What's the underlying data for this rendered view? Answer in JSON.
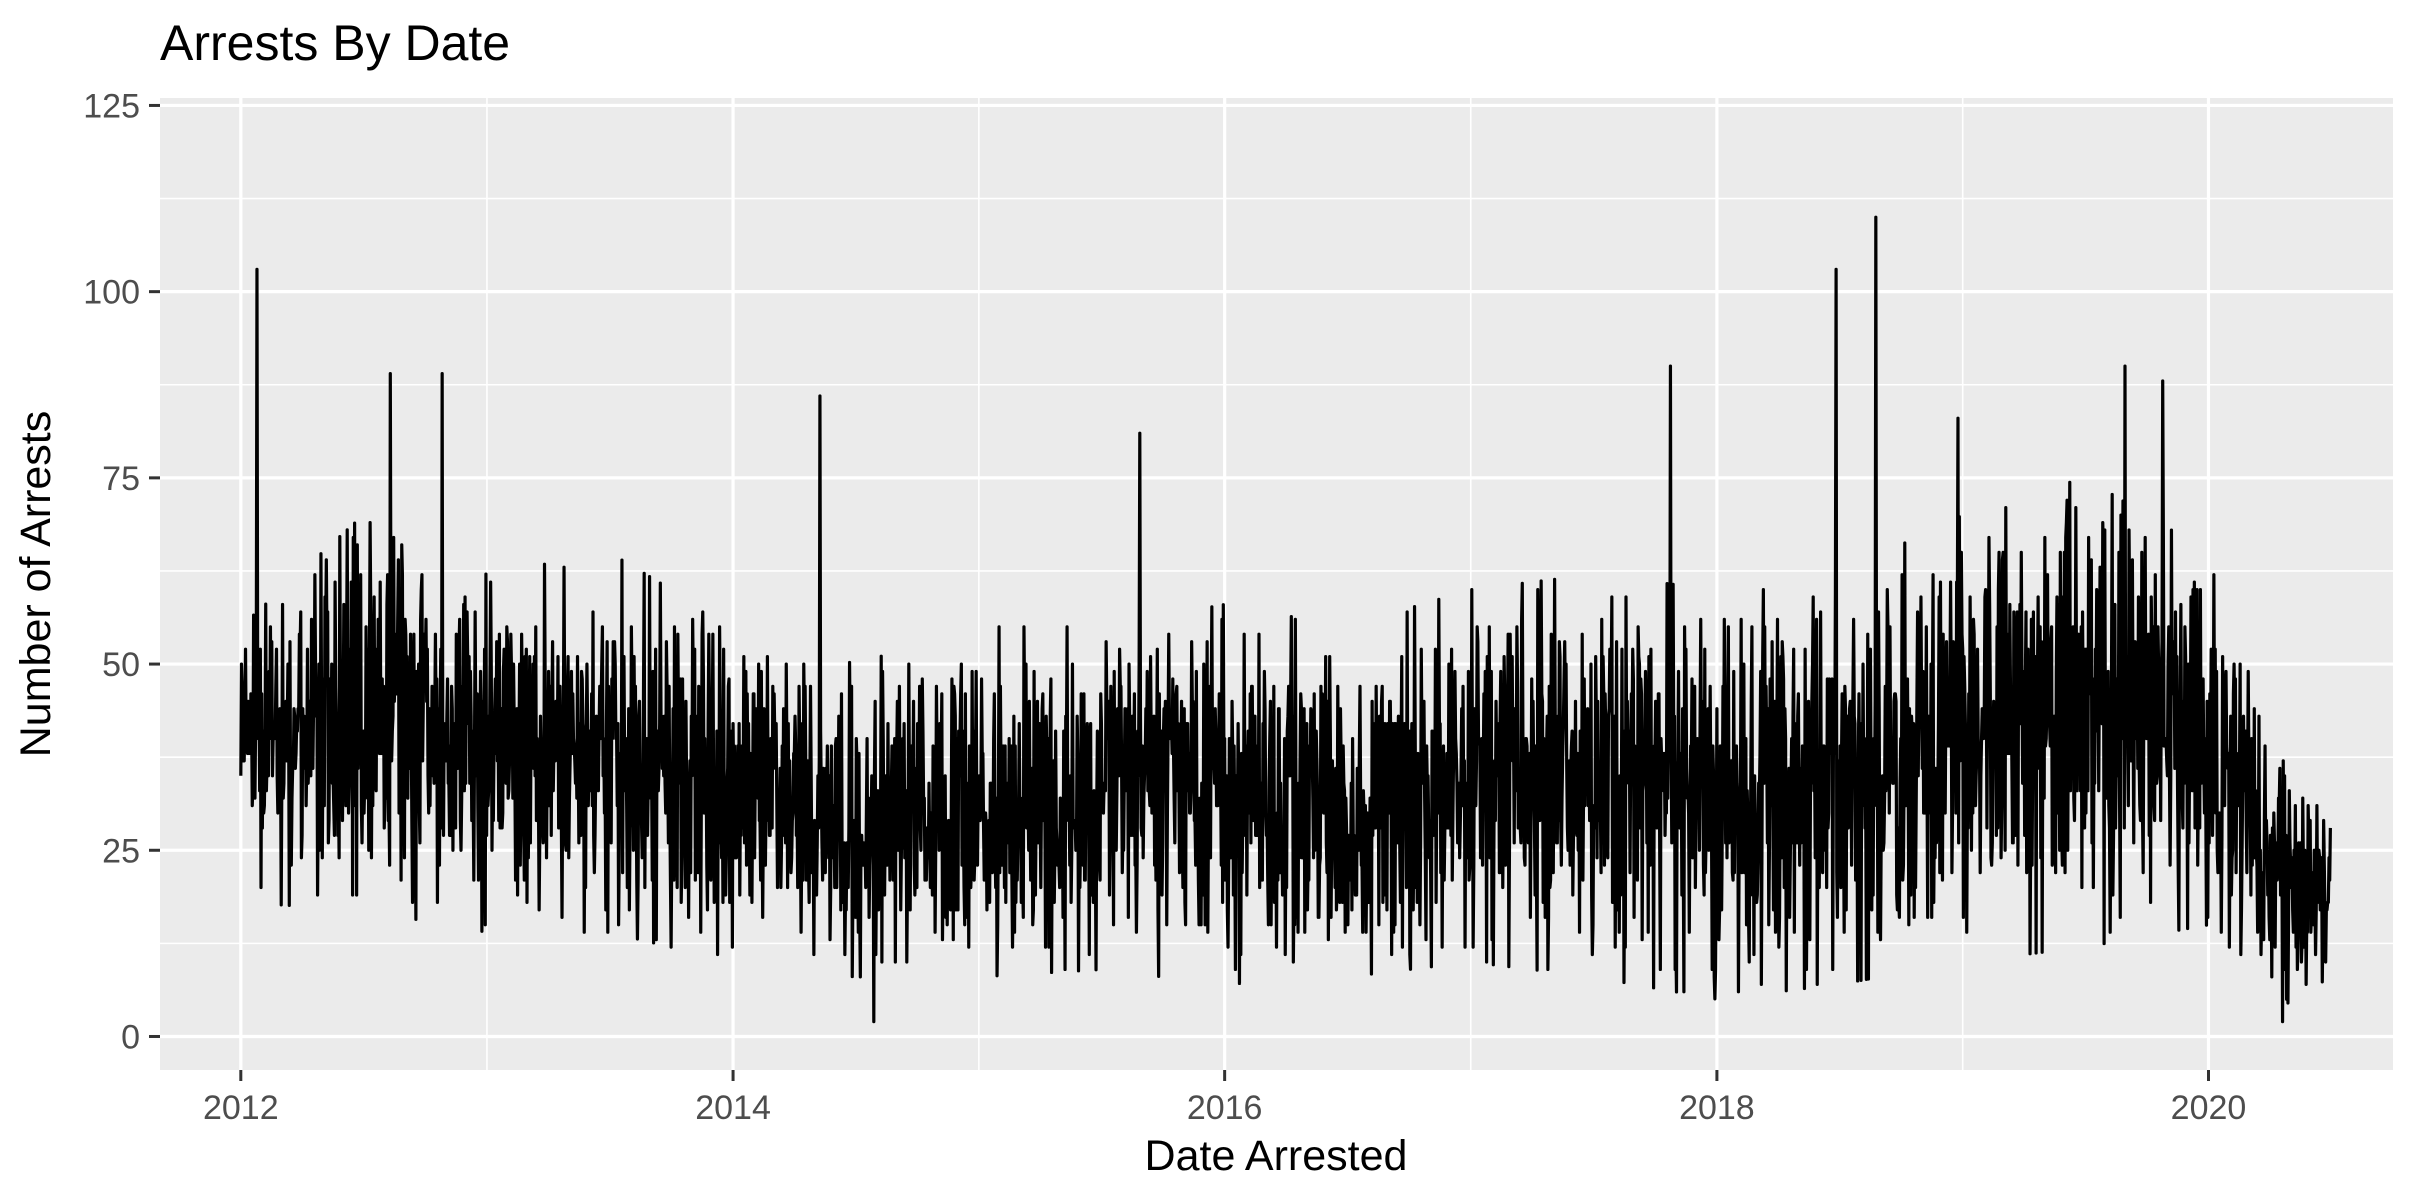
{
  "chart_data": {
    "type": "line",
    "title": "Arrests By Date",
    "xlabel": "Date Arrested",
    "ylabel": "Number of Arrests",
    "x_range": [
      "2011-09-03",
      "2020-10-01"
    ],
    "ylim": [
      -4.5,
      126
    ],
    "x_ticks": [
      {
        "date": "2012-01-01",
        "label": "2012"
      },
      {
        "date": "2014-01-01",
        "label": "2014"
      },
      {
        "date": "2016-01-01",
        "label": "2016"
      },
      {
        "date": "2018-01-01",
        "label": "2018"
      },
      {
        "date": "2020-01-01",
        "label": "2020"
      }
    ],
    "y_ticks": [
      {
        "value": 0,
        "label": "0"
      },
      {
        "value": 25,
        "label": "25"
      },
      {
        "value": 50,
        "label": "50"
      },
      {
        "value": 75,
        "label": "75"
      },
      {
        "value": 100,
        "label": "100"
      },
      {
        "value": 125,
        "label": "125"
      }
    ],
    "grid": true,
    "legend": "none",
    "colors": {
      "panel": "#ebebeb",
      "grid": "#ffffff",
      "line": "#000000",
      "tick_text": "#4d4d4d"
    },
    "series": [
      {
        "date_range": [
          "2012-01-01",
          "2020-06-30"
        ],
        "notable_points": [
          {
            "date": "2012-01-25",
            "value": 103
          },
          {
            "date": "2012-08-10",
            "value": 89
          },
          {
            "date": "2012-10-26",
            "value": 89
          },
          {
            "date": "2014-05-10",
            "value": 86
          },
          {
            "date": "2015-08-28",
            "value": 81
          },
          {
            "date": "2017-10-24",
            "value": 90
          },
          {
            "date": "2018-06-27",
            "value": 103
          },
          {
            "date": "2018-08-25",
            "value": 110
          },
          {
            "date": "2018-12-25",
            "value": 83
          },
          {
            "date": "2019-08-30",
            "value": 90
          },
          {
            "date": "2019-10-25",
            "value": 88
          },
          {
            "date": "2014-07-29",
            "value": 2
          },
          {
            "date": "2020-04-20",
            "value": 2
          }
        ],
        "period_levels": [
          {
            "date": "2012-01-01",
            "low": 18,
            "high": 55
          },
          {
            "date": "2012-07-01",
            "low": 17,
            "high": 70
          },
          {
            "date": "2013-01-01",
            "low": 14,
            "high": 62
          },
          {
            "date": "2013-07-01",
            "low": 14,
            "high": 65
          },
          {
            "date": "2014-01-01",
            "low": 10,
            "high": 55
          },
          {
            "date": "2014-07-01",
            "low": 8,
            "high": 50
          },
          {
            "date": "2015-01-01",
            "low": 8,
            "high": 55
          },
          {
            "date": "2015-07-01",
            "low": 9,
            "high": 55
          },
          {
            "date": "2016-01-01",
            "low": 7,
            "high": 58
          },
          {
            "date": "2016-07-01",
            "low": 8,
            "high": 55
          },
          {
            "date": "2017-01-01",
            "low": 10,
            "high": 60
          },
          {
            "date": "2017-07-01",
            "low": 8,
            "high": 62
          },
          {
            "date": "2018-01-01",
            "low": 5,
            "high": 60
          },
          {
            "date": "2018-07-01",
            "low": 7,
            "high": 62
          },
          {
            "date": "2019-01-01",
            "low": 10,
            "high": 70
          },
          {
            "date": "2019-07-01",
            "low": 12,
            "high": 75
          },
          {
            "date": "2020-01-01",
            "low": 15,
            "high": 65
          },
          {
            "date": "2020-04-01",
            "low": 3,
            "high": 45
          },
          {
            "date": "2020-06-30",
            "low": 8,
            "high": 31
          }
        ]
      }
    ]
  }
}
